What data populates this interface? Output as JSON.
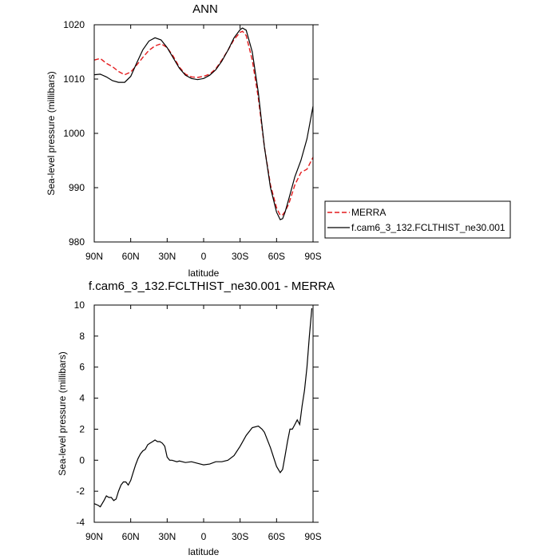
{
  "chart_data": [
    {
      "type": "line",
      "title": "ANN",
      "xlabel": "latitude",
      "ylabel": "Sea-level pressure (millibars)",
      "xlim": [
        90,
        -90
      ],
      "ylim": [
        980,
        1020
      ],
      "xticks": [
        90,
        60,
        30,
        0,
        -30,
        -60,
        -90
      ],
      "xtick_labels": [
        "90N",
        "60N",
        "30N",
        "0",
        "30S",
        "60S",
        "90S"
      ],
      "yticks": [
        980,
        990,
        1000,
        1010,
        1020
      ],
      "ytick_labels": [
        "980",
        "990",
        "1000",
        "1010",
        "1020"
      ],
      "legend_position": "right",
      "series": [
        {
          "name": "MERRA",
          "color": "#e41a1c",
          "dash": "dashed",
          "x": [
            90,
            85,
            80,
            75,
            70,
            65,
            60,
            55,
            50,
            45,
            40,
            35,
            30,
            25,
            20,
            15,
            10,
            5,
            0,
            -5,
            -10,
            -15,
            -20,
            -25,
            -30,
            -32,
            -35,
            -40,
            -45,
            -50,
            -55,
            -60,
            -63,
            -65,
            -67,
            -70,
            -75,
            -80,
            -85,
            -90
          ],
          "y": [
            1013.5,
            1013.8,
            1012.9,
            1012.3,
            1011.4,
            1010.8,
            1011.3,
            1012.6,
            1014.0,
            1015.3,
            1016.1,
            1016.5,
            1015.8,
            1014.2,
            1012.2,
            1010.9,
            1010.4,
            1010.3,
            1010.5,
            1010.9,
            1011.9,
            1013.5,
            1015.3,
            1017.3,
            1018.6,
            1018.8,
            1018.0,
            1013.5,
            1006.5,
            997.5,
            990.5,
            986.3,
            984.9,
            985.0,
            985.6,
            987.0,
            990.5,
            992.8,
            993.4,
            995.6
          ]
        },
        {
          "name": "f.cam6_3_132.FCLTHIST_ne30.001",
          "color": "#000000",
          "dash": "solid",
          "x": [
            90,
            85,
            80,
            75,
            70,
            65,
            60,
            55,
            50,
            45,
            40,
            35,
            30,
            25,
            20,
            15,
            10,
            5,
            0,
            -5,
            -10,
            -15,
            -20,
            -25,
            -30,
            -32,
            -35,
            -40,
            -45,
            -50,
            -55,
            -60,
            -63,
            -65,
            -67,
            -70,
            -75,
            -80,
            -85,
            -90
          ],
          "y": [
            1010.8,
            1010.9,
            1010.4,
            1009.7,
            1009.4,
            1009.4,
            1010.5,
            1013.0,
            1015.4,
            1017.0,
            1017.6,
            1017.2,
            1015.8,
            1013.9,
            1012.0,
            1010.7,
            1010.1,
            1009.9,
            1010.1,
            1010.7,
            1011.7,
            1013.3,
            1015.3,
            1017.6,
            1019.1,
            1019.4,
            1019.0,
            1015.0,
            1007.5,
            997.5,
            990.0,
            985.5,
            984.1,
            984.3,
            985.5,
            987.9,
            992.0,
            995.0,
            999.0,
            1005.0
          ]
        }
      ]
    },
    {
      "type": "line",
      "title": "f.cam6_3_132.FCLTHIST_ne30.001 - MERRA",
      "xlabel": "latitude",
      "ylabel": "Sea-level pressure (millibars)",
      "xlim": [
        90,
        -90
      ],
      "ylim": [
        -4,
        10
      ],
      "xticks": [
        90,
        60,
        30,
        0,
        -30,
        -60,
        -90
      ],
      "xtick_labels": [
        "90N",
        "60N",
        "30N",
        "0",
        "30S",
        "60S",
        "90S"
      ],
      "yticks": [
        -4,
        -2,
        0,
        2,
        4,
        6,
        8,
        10
      ],
      "ytick_labels": [
        "-4",
        "-2",
        "0",
        "2",
        "4",
        "6",
        "8",
        "10"
      ],
      "series": [
        {
          "color": "#000000",
          "dash": "solid",
          "x": [
            90,
            87,
            85,
            82,
            80,
            78,
            76,
            74,
            72,
            70,
            68,
            66,
            64,
            62,
            60,
            58,
            56,
            54,
            52,
            50,
            48,
            46,
            44,
            42,
            40,
            38,
            36,
            34,
            32,
            30,
            28,
            26,
            24,
            22,
            20,
            15,
            10,
            5,
            0,
            -5,
            -10,
            -15,
            -20,
            -25,
            -30,
            -35,
            -40,
            -45,
            -48,
            -50,
            -55,
            -60,
            -63,
            -65,
            -67,
            -69,
            -71,
            -73,
            -75,
            -77,
            -79,
            -81,
            -83,
            -85,
            -87,
            -89
          ],
          "y": [
            -2.8,
            -2.9,
            -3.0,
            -2.6,
            -2.3,
            -2.4,
            -2.4,
            -2.6,
            -2.5,
            -2.0,
            -1.6,
            -1.4,
            -1.4,
            -1.6,
            -1.3,
            -0.8,
            -0.3,
            0.1,
            0.4,
            0.6,
            0.7,
            1.0,
            1.1,
            1.2,
            1.3,
            1.2,
            1.2,
            1.1,
            0.9,
            0.2,
            0.0,
            0.0,
            -0.05,
            -0.1,
            -0.05,
            -0.15,
            -0.1,
            -0.2,
            -0.3,
            -0.25,
            -0.1,
            -0.1,
            0.0,
            0.3,
            0.9,
            1.6,
            2.1,
            2.2,
            2.0,
            1.8,
            0.8,
            -0.4,
            -0.8,
            -0.6,
            0.3,
            1.2,
            2.0,
            2.0,
            2.3,
            2.6,
            2.3,
            3.5,
            4.5,
            6.0,
            8.0,
            9.8
          ]
        }
      ]
    }
  ]
}
